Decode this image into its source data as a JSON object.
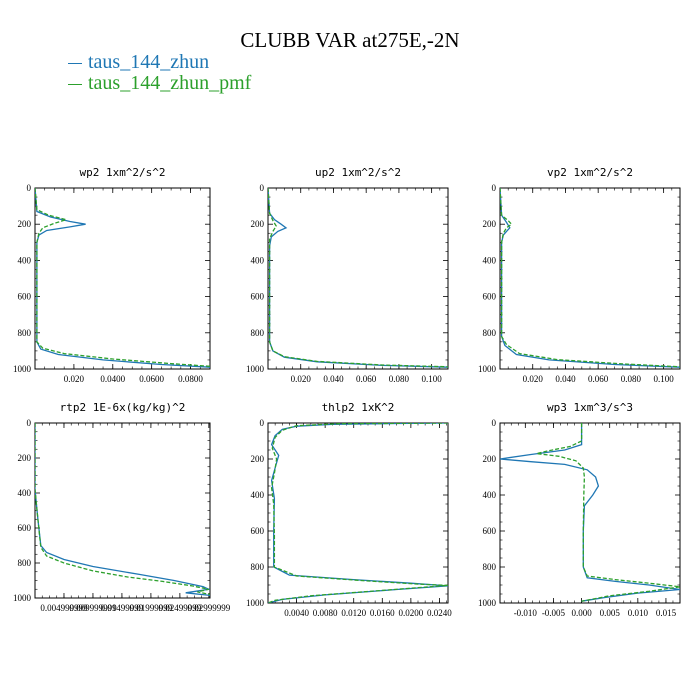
{
  "title": "CLUBB VAR at275E,-2N",
  "legend": [
    {
      "label": "taus_144_zhun",
      "color": "#1f77b4",
      "dash": "solid"
    },
    {
      "label": "taus_144_zhun_pmf",
      "color": "#2ca02c",
      "dash": "dashed"
    }
  ],
  "chart_data": [
    {
      "type": "line",
      "title": "wp2  1xm^2/s^2",
      "xlim": [
        0,
        0.09
      ],
      "ylim": [
        1000,
        0
      ],
      "xticks": [
        0.02,
        0.04,
        0.06,
        0.08
      ],
      "xticklabels": [
        "0.020",
        "0.0400",
        "0.0600",
        "0.0800"
      ],
      "yticks": [
        0,
        200,
        400,
        600,
        800,
        1000
      ],
      "yticklabels": [
        "0",
        "200",
        "400",
        "600",
        "800",
        "1000"
      ],
      "series": [
        {
          "name": "taus_144_zhun",
          "points": [
            [
              0,
              0
            ],
            [
              0.001,
              130
            ],
            [
              0.008,
              160
            ],
            [
              0.018,
              185
            ],
            [
              0.026,
              200
            ],
            [
              0.018,
              215
            ],
            [
              0.006,
              235
            ],
            [
              0.002,
              260
            ],
            [
              0.001,
              300
            ],
            [
              0.001,
              600
            ],
            [
              0.001,
              850
            ],
            [
              0.003,
              890
            ],
            [
              0.012,
              920
            ],
            [
              0.035,
              950
            ],
            [
              0.065,
              975
            ],
            [
              0.09,
              990
            ]
          ]
        },
        {
          "name": "taus_144_zhun_pmf",
          "points": [
            [
              0,
              0
            ],
            [
              0.001,
              120
            ],
            [
              0.007,
              150
            ],
            [
              0.016,
              175
            ],
            [
              0.01,
              195
            ],
            [
              0.004,
              220
            ],
            [
              0.002,
              250
            ],
            [
              0.001,
              300
            ],
            [
              0.001,
              600
            ],
            [
              0.001,
              850
            ],
            [
              0.004,
              885
            ],
            [
              0.015,
              915
            ],
            [
              0.04,
              945
            ],
            [
              0.07,
              970
            ],
            [
              0.09,
              985
            ]
          ]
        }
      ]
    },
    {
      "type": "line",
      "title": "up2  1xm^2/s^2",
      "xlim": [
        0,
        0.11
      ],
      "ylim": [
        1000,
        0
      ],
      "xticks": [
        0.02,
        0.04,
        0.06,
        0.08,
        0.1
      ],
      "xticklabels": [
        "0.020",
        "0.040",
        "0.060",
        "0.080",
        "0.100"
      ],
      "yticks": [
        0,
        200,
        400,
        600,
        800,
        1000
      ],
      "yticklabels": [
        "0",
        "200",
        "400",
        "600",
        "800",
        "1000"
      ],
      "series": [
        {
          "name": "taus_144_zhun",
          "points": [
            [
              0,
              0
            ],
            [
              0.001,
              140
            ],
            [
              0.004,
              175
            ],
            [
              0.008,
              200
            ],
            [
              0.011,
              220
            ],
            [
              0.006,
              240
            ],
            [
              0.002,
              270
            ],
            [
              0.001,
              320
            ],
            [
              0.001,
              850
            ],
            [
              0.003,
              900
            ],
            [
              0.01,
              935
            ],
            [
              0.03,
              960
            ],
            [
              0.07,
              980
            ],
            [
              0.11,
              990
            ]
          ]
        },
        {
          "name": "taus_144_zhun_pmf",
          "points": [
            [
              0,
              0
            ],
            [
              0.001,
              140
            ],
            [
              0.003,
              180
            ],
            [
              0.005,
              210
            ],
            [
              0.003,
              240
            ],
            [
              0.001,
              280
            ],
            [
              0.001,
              850
            ],
            [
              0.003,
              900
            ],
            [
              0.01,
              932
            ],
            [
              0.03,
              958
            ],
            [
              0.07,
              978
            ],
            [
              0.11,
              988
            ]
          ]
        }
      ]
    },
    {
      "type": "line",
      "title": "vp2  1xm^2/s^2",
      "xlim": [
        0,
        0.11
      ],
      "ylim": [
        1000,
        0
      ],
      "xticks": [
        0.02,
        0.04,
        0.06,
        0.08,
        0.1
      ],
      "xticklabels": [
        "0.020",
        "0.040",
        "0.060",
        "0.080",
        "0.100"
      ],
      "yticks": [
        0,
        200,
        400,
        600,
        800,
        1000
      ],
      "yticklabels": [
        "0",
        "200",
        "400",
        "600",
        "800",
        "1000"
      ],
      "series": [
        {
          "name": "taus_144_zhun",
          "points": [
            [
              0,
              0
            ],
            [
              0.001,
              150
            ],
            [
              0.004,
              190
            ],
            [
              0.006,
              220
            ],
            [
              0.004,
              240
            ],
            [
              0.002,
              260
            ],
            [
              0.001,
              300
            ],
            [
              0.001,
              820
            ],
            [
              0.003,
              870
            ],
            [
              0.01,
              920
            ],
            [
              0.03,
              950
            ],
            [
              0.07,
              975
            ],
            [
              0.11,
              990
            ]
          ]
        },
        {
          "name": "taus_144_zhun_pmf",
          "points": [
            [
              0,
              0
            ],
            [
              0.001,
              150
            ],
            [
              0.005,
              180
            ],
            [
              0.007,
              200
            ],
            [
              0.004,
              220
            ],
            [
              0.002,
              250
            ],
            [
              0.001,
              300
            ],
            [
              0.001,
              820
            ],
            [
              0.004,
              865
            ],
            [
              0.012,
              915
            ],
            [
              0.035,
              948
            ],
            [
              0.075,
              972
            ],
            [
              0.11,
              988
            ]
          ]
        }
      ]
    },
    {
      "type": "line",
      "title": "rtp2  1E-6x(kg/kg)^2",
      "xlim": [
        0,
        0.0302
      ],
      "ylim": [
        1000,
        0
      ],
      "xticks": [
        0.005,
        0.01,
        0.015,
        0.02,
        0.025,
        0.03
      ],
      "xticklabels": [
        "0.004999999",
        "0.009999999",
        "0.01499999",
        "0.01999999",
        "0.02499999",
        "0.02999999"
      ],
      "yticks": [
        0,
        200,
        400,
        600,
        800,
        1000
      ],
      "yticklabels": [
        "0",
        "200",
        "400",
        "600",
        "800",
        "1000"
      ],
      "series": [
        {
          "name": "taus_144_zhun",
          "points": [
            [
              0,
              0
            ],
            [
              0,
              380
            ],
            [
              0.0005,
              550
            ],
            [
              0.001,
              700
            ],
            [
              0.002,
              740
            ],
            [
              0.005,
              780
            ],
            [
              0.01,
              820
            ],
            [
              0.018,
              865
            ],
            [
              0.024,
              900
            ],
            [
              0.029,
              935
            ],
            [
              0.03,
              950
            ],
            [
              0.026,
              970
            ],
            [
              0.0302,
              985
            ]
          ]
        },
        {
          "name": "taus_144_zhun_pmf",
          "points": [
            [
              0,
              0
            ],
            [
              0,
              380
            ],
            [
              0.0005,
              550
            ],
            [
              0.001,
              710
            ],
            [
              0.002,
              760
            ],
            [
              0.005,
              800
            ],
            [
              0.01,
              845
            ],
            [
              0.016,
              880
            ],
            [
              0.022,
              905
            ],
            [
              0.027,
              930
            ],
            [
              0.03,
              950
            ],
            [
              0.028,
              965
            ],
            [
              0.0302,
              980
            ]
          ]
        }
      ]
    },
    {
      "type": "line",
      "title": "thlp2  1xK^2",
      "xlim": [
        0,
        0.0252
      ],
      "ylim": [
        1000,
        0
      ],
      "xticks": [
        0.004,
        0.008,
        0.012,
        0.016,
        0.02,
        0.024
      ],
      "xticklabels": [
        "0.0040",
        "0.0080",
        "0.0120",
        "0.0160",
        "0.0200",
        "0.0240"
      ],
      "yticks": [
        0,
        200,
        400,
        600,
        800,
        1000
      ],
      "yticklabels": [
        "0",
        "200",
        "400",
        "600",
        "800",
        "1000"
      ],
      "series": [
        {
          "name": "taus_144_zhun",
          "points": [
            [
              0.0252,
              0
            ],
            [
              0.018,
              3
            ],
            [
              0.009,
              8
            ],
            [
              0.004,
              18
            ],
            [
              0.002,
              35
            ],
            [
              0.001,
              70
            ],
            [
              0.0005,
              120
            ],
            [
              0.0015,
              180
            ],
            [
              0.001,
              250
            ],
            [
              0.0005,
              320
            ],
            [
              0.0009,
              420
            ],
            [
              0.0008,
              600
            ],
            [
              0.0008,
              800
            ],
            [
              0.003,
              845
            ],
            [
              0.012,
              870
            ],
            [
              0.02,
              890
            ],
            [
              0.0252,
              905
            ],
            [
              0.018,
              925
            ],
            [
              0.008,
              955
            ],
            [
              0.002,
              980
            ],
            [
              0,
              1000
            ]
          ]
        },
        {
          "name": "taus_144_zhun_pmf",
          "points": [
            [
              0.0252,
              0
            ],
            [
              0.01,
              4
            ],
            [
              0.004,
              15
            ],
            [
              0.002,
              40
            ],
            [
              0.001,
              80
            ],
            [
              0.0006,
              140
            ],
            [
              0.0012,
              200
            ],
            [
              0.0009,
              280
            ],
            [
              0.0005,
              360
            ],
            [
              0.0008,
              450
            ],
            [
              0.0009,
              620
            ],
            [
              0.0009,
              800
            ],
            [
              0.004,
              850
            ],
            [
              0.013,
              875
            ],
            [
              0.021,
              895
            ],
            [
              0.0252,
              902
            ],
            [
              0.016,
              930
            ],
            [
              0.006,
              960
            ],
            [
              0.001,
              985
            ],
            [
              0,
              1000
            ]
          ]
        }
      ]
    },
    {
      "type": "line",
      "title": "wp3  1xm^3/s^3",
      "xlim": [
        -0.0145,
        0.0175
      ],
      "ylim": [
        1000,
        0
      ],
      "xticks": [
        -0.01,
        -0.005,
        0,
        0.005,
        0.01,
        0.015
      ],
      "xticklabels": [
        "-0.010",
        "-0.005",
        "0.000",
        "0.005",
        "0.010",
        "0.015"
      ],
      "yticks": [
        0,
        200,
        400,
        600,
        800,
        1000
      ],
      "yticklabels": [
        "0",
        "200",
        "400",
        "600",
        "800",
        "1000"
      ],
      "series": [
        {
          "name": "taus_144_zhun",
          "points": [
            [
              0,
              0
            ],
            [
              0,
              120
            ],
            [
              -0.003,
              150
            ],
            [
              -0.009,
              175
            ],
            [
              -0.0145,
              200
            ],
            [
              -0.009,
              215
            ],
            [
              -0.003,
              230
            ],
            [
              0.001,
              260
            ],
            [
              0.0025,
              300
            ],
            [
              0.003,
              350
            ],
            [
              0.002,
              400
            ],
            [
              0.0005,
              460
            ],
            [
              0.0003,
              600
            ],
            [
              0.0003,
              800
            ],
            [
              0.001,
              860
            ],
            [
              0.006,
              880
            ],
            [
              0.012,
              900
            ],
            [
              0.0175,
              925
            ],
            [
              0.01,
              945
            ],
            [
              0.004,
              970
            ],
            [
              0,
              990
            ]
          ]
        },
        {
          "name": "taus_144_zhun_pmf",
          "points": [
            [
              0,
              0
            ],
            [
              0,
              100
            ],
            [
              -0.002,
              130
            ],
            [
              -0.006,
              155
            ],
            [
              -0.008,
              170
            ],
            [
              -0.004,
              185
            ],
            [
              -0.001,
              210
            ],
            [
              0.0003,
              250
            ],
            [
              0.0005,
              300
            ],
            [
              0.0004,
              400
            ],
            [
              0.0003,
              600
            ],
            [
              0.0003,
              800
            ],
            [
              0.001,
              850
            ],
            [
              0.006,
              870
            ],
            [
              0.012,
              890
            ],
            [
              0.0175,
              910
            ],
            [
              0.012,
              935
            ],
            [
              0.005,
              960
            ],
            [
              0,
              990
            ]
          ]
        }
      ]
    }
  ]
}
